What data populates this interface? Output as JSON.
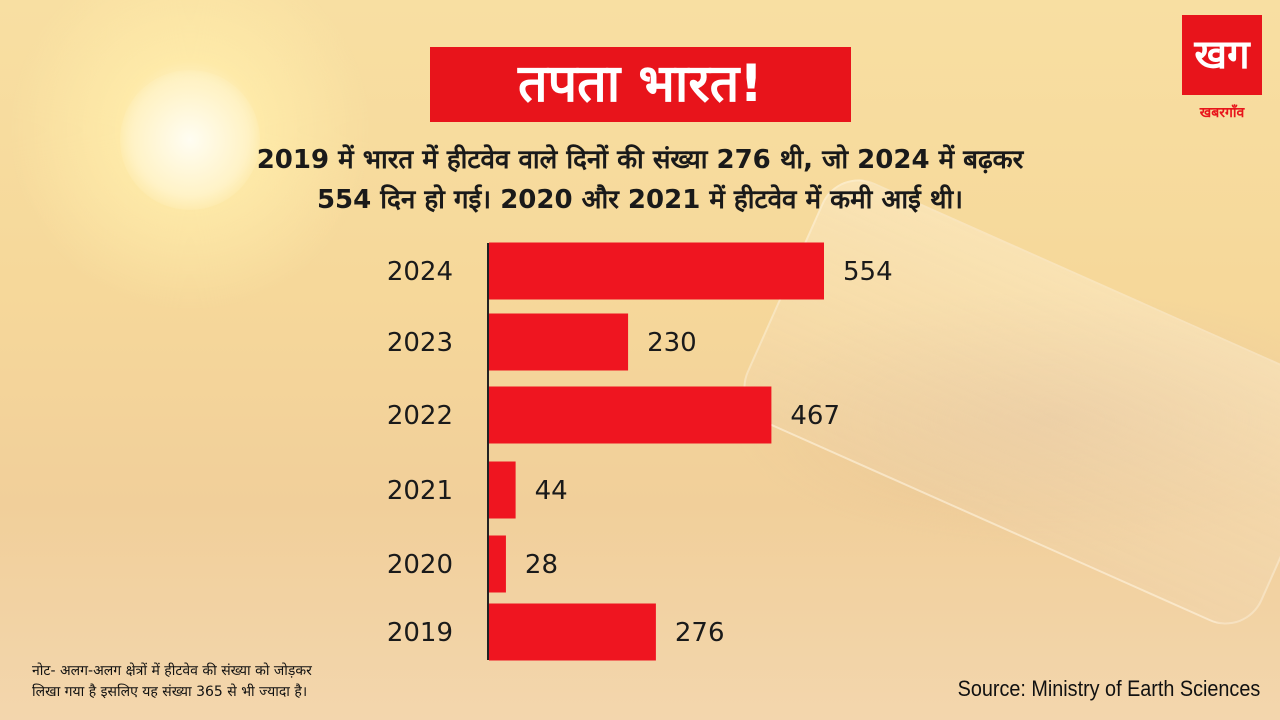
{
  "header": {
    "title": "तपता भारत!",
    "subtitle_line1": "2019 में भारत में हीटवेव वाले दिनों की संख्या 276 थी, जो 2024 में बढ़कर",
    "subtitle_line2": "554 दिन हो गई। 2020 और 2021 में हीटवेव में कमी आई थी।"
  },
  "logo": {
    "mark": "खग",
    "text": "खबरगाँव"
  },
  "chart_data": {
    "type": "bar",
    "orientation": "horizontal",
    "categories": [
      "2024",
      "2023",
      "2022",
      "2021",
      "2020",
      "2019"
    ],
    "values": [
      554,
      230,
      467,
      44,
      28,
      276
    ],
    "title": "",
    "xlabel": "",
    "ylabel": "",
    "xlim": [
      0,
      554
    ],
    "grid": false,
    "legend": "none",
    "bar_color": "#ef1520",
    "axis_color": "#222222"
  },
  "footer": {
    "note_line1": "नोट- अलग-अलग क्षेत्रों में हीटवेव की संख्या को जोड़कर",
    "note_line2": "लिखा गया है इसलिए यह संख्या 365 से भी ज्यादा है।",
    "source": "Source: Ministry of Earth Sciences"
  }
}
